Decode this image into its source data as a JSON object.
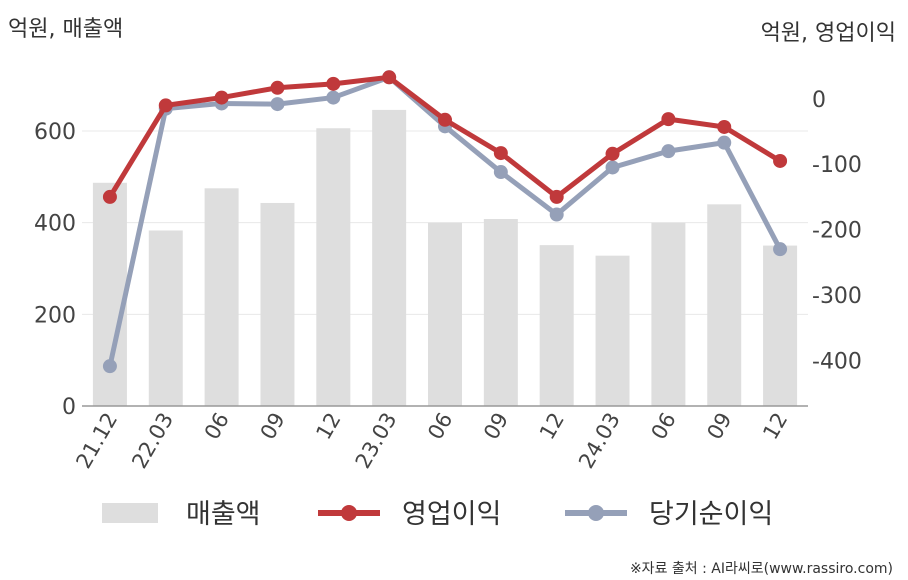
{
  "chart_data": {
    "type": "bar",
    "categories": [
      "21.12",
      "22.03",
      "06",
      "09",
      "12",
      "23.03",
      "06",
      "09",
      "12",
      "24.03",
      "06",
      "09",
      "12"
    ],
    "left_axis": {
      "unit_label": "억원, 매출액",
      "ticks": [
        0,
        200,
        400,
        600
      ],
      "ylim": [
        0,
        720
      ]
    },
    "right_axis": {
      "unit_label": "억원, 영업이익",
      "ticks": [
        0,
        -100,
        -200,
        -300,
        -400
      ],
      "ylim": [
        -470,
        35
      ]
    },
    "series": [
      {
        "name": "매출액",
        "kind": "bar",
        "axis": "left",
        "color": "#dedede",
        "values": [
          487,
          383,
          475,
          443,
          606,
          646,
          400,
          408,
          351,
          328,
          400,
          440,
          350
        ]
      },
      {
        "name": "영업이익",
        "kind": "line",
        "axis": "right",
        "color": "#c0393b",
        "values": [
          -150,
          -10,
          2,
          17,
          23,
          33,
          -32,
          -83,
          -150,
          -84,
          -31,
          -43,
          -95
        ]
      },
      {
        "name": "당기순이익",
        "kind": "line",
        "axis": "right",
        "color": "#95a0b8",
        "values": [
          -409,
          -15,
          -7,
          -8,
          2,
          33,
          -42,
          -112,
          -177,
          -105,
          -80,
          -67,
          -230
        ]
      }
    ],
    "grid": true,
    "legend_position": "bottom"
  },
  "source_note": "※자료 출처 : AI라씨로(www.rassiro.com)"
}
